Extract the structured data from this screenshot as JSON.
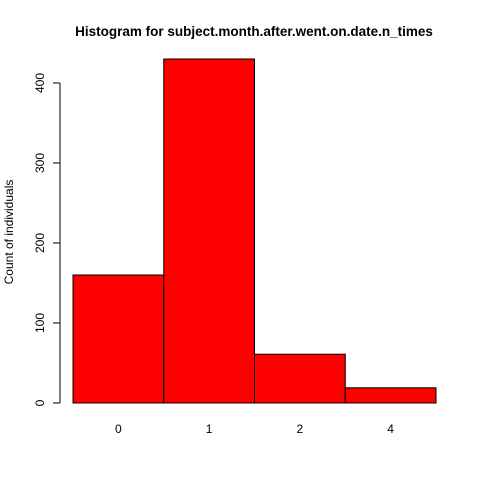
{
  "chart_data": {
    "type": "bar",
    "title": "Histogram for subject.month.after.went.on.date.n_times",
    "xlabel": "",
    "ylabel": "Count of individuals",
    "categories": [
      "0",
      "1",
      "2",
      "4"
    ],
    "values": [
      160,
      430,
      61,
      19
    ],
    "ylim": [
      0,
      430
    ],
    "yticks": [
      0,
      100,
      200,
      300,
      400
    ],
    "bar_color": "#ff0000",
    "bar_border_color": "#000000",
    "grid": false,
    "legend": "none"
  }
}
